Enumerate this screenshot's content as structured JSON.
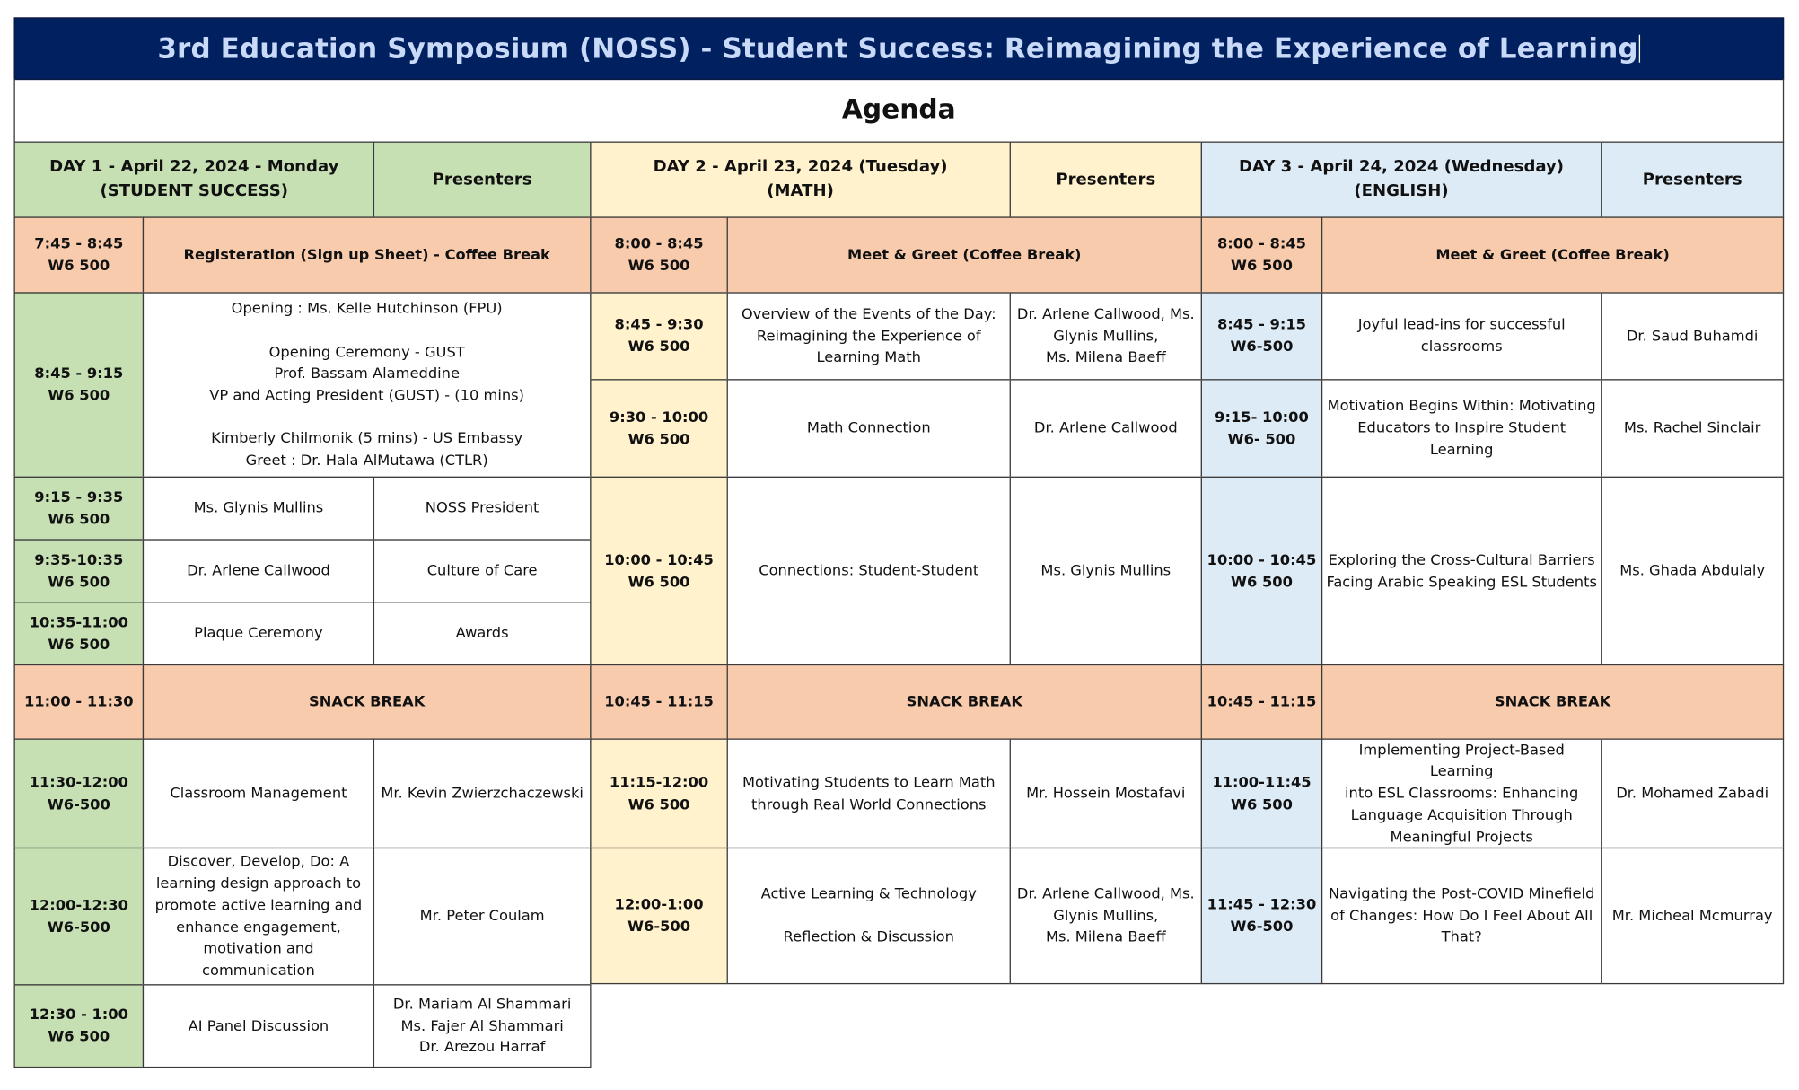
{
  "title": "3rd Education Symposium (NOSS) - Student Success: Reimagining the Experience of Learning",
  "subtitle": "Agenda",
  "colors": {
    "title_bg": "#012060",
    "title_text": "#c9daf8",
    "day1": "#c6e0b4",
    "day2": "#fff2cc",
    "day3": "#ddebf7",
    "break": "#f8cbad"
  },
  "headers": {
    "day1": "DAY 1 - April 22, 2024 - Monday\n(STUDENT SUCCESS)",
    "day1_presenters": "Presenters",
    "day2": "DAY 2 - April 23, 2024 (Tuesday)\n(MATH)",
    "day2_presenters": "Presenters",
    "day3": "DAY 3 - April 24, 2024 (Wednesday)\n(ENGLISH)",
    "day3_presenters": "Presenters"
  },
  "day1": {
    "coffee_time": "7:45 - 8:45\nW6 500",
    "coffee_label": "Registeration (Sign up Sheet) -  Coffee Break",
    "opening_time": "8:45 - 9:15\nW6 500",
    "opening_text": "Opening : Ms. Kelle Hutchinson (FPU)\n\nOpening Ceremony - GUST\nProf. Bassam Alameddine\nVP and Acting President (GUST) - (10 mins)\n\nKimberly Chilmonik (5 mins) - US Embassy\nGreet : Dr. Hala AlMutawa (CTLR)",
    "s1_time": "9:15 - 9:35\nW6 500",
    "s1_title": "Ms. Glynis Mullins",
    "s1_presenter": "NOSS President",
    "s2_time": "9:35-10:35\nW6 500",
    "s2_title": "Dr. Arlene Callwood",
    "s2_presenter": "Culture of Care",
    "s3_time": "10:35-11:00\nW6 500",
    "s3_title": "Plaque Ceremony",
    "s3_presenter": "Awards",
    "snack_time": "11:00 - 11:30",
    "snack_label": "SNACK BREAK",
    "s4_time": "11:30-12:00\nW6-500",
    "s4_title": "Classroom Management",
    "s4_presenter": "Mr. Kevin Zwierzchaczewski",
    "s5_time": "12:00-12:30\nW6-500",
    "s5_title": "Discover, Develop, Do: A\nlearning design approach to\npromote active learning and\nenhance engagement,\nmotivation and communication",
    "s5_presenter": "Mr. Peter Coulam",
    "s6_time": "12:30 - 1:00\nW6 500",
    "s6_title": "AI Panel Discussion",
    "s6_presenter": "Dr. Mariam Al Shammari\nMs. Fajer Al Shammari\nDr. Arezou Harraf"
  },
  "day2": {
    "coffee_time": "8:00 - 8:45\nW6 500",
    "coffee_label": "Meet & Greet (Coffee Break)",
    "s1_time": "8:45 - 9:30\nW6 500",
    "s1_title": "Overview of the Events of the Day:\nReimagining the Experience of\nLearning Math",
    "s1_presenter": "Dr. Arlene Callwood, Ms.\nGlynis Mullins,\nMs. Milena Baeff",
    "s2_time": "9:30 - 10:00\nW6 500",
    "s2_title": "Math Connection",
    "s2_presenter": "Dr. Arlene Callwood",
    "s3_time": "10:00 - 10:45\nW6 500",
    "s3_title": "Connections: Student-Student",
    "s3_presenter": "Ms. Glynis Mullins",
    "snack_time": "10:45 - 11:15",
    "snack_label": "SNACK BREAK",
    "s4_time": "11:15-12:00\nW6 500",
    "s4_title": "Motivating Students to Learn Math\nthrough Real World Connections",
    "s4_presenter": "Mr. Hossein Mostafavi",
    "s5_time": "12:00-1:00\nW6-500",
    "s5_title": "Active Learning & Technology\n\nReflection & Discussion",
    "s5_presenter": "Dr. Arlene Callwood, Ms.\nGlynis Mullins,\nMs. Milena Baeff"
  },
  "day3": {
    "coffee_time": "8:00 - 8:45\nW6 500",
    "coffee_label": "Meet & Greet (Coffee Break)",
    "s1_time": "8:45 - 9:15\nW6-500",
    "s1_title": "Joyful lead-ins for successful\nclassrooms",
    "s1_presenter": "Dr. Saud Buhamdi",
    "s2_time": "9:15- 10:00\nW6- 500",
    "s2_title": "Motivation Begins Within: Motivating\nEducators to Inspire Student Learning",
    "s2_presenter": "Ms. Rachel Sinclair",
    "s3_time": "10:00 - 10:45\nW6 500",
    "s3_title": "Exploring the Cross-Cultural Barriers\nFacing Arabic Speaking ESL Students",
    "s3_presenter": "Ms. Ghada Abdulaly",
    "snack_time": "10:45 - 11:15",
    "snack_label": "SNACK BREAK",
    "s4_time": "11:00-11:45\nW6 500",
    "s4_title": "Implementing Project-Based Learning\ninto ESL Classrooms: Enhancing\nLanguage Acquisition Through\nMeaningful Projects",
    "s4_presenter": "Dr. Mohamed Zabadi",
    "s5_time": "11:45 - 12:30\nW6-500",
    "s5_title": "Navigating the Post-COVID Minefield\nof Changes:  How Do I Feel About All\nThat?",
    "s5_presenter": "Mr. Micheal Mcmurray"
  }
}
